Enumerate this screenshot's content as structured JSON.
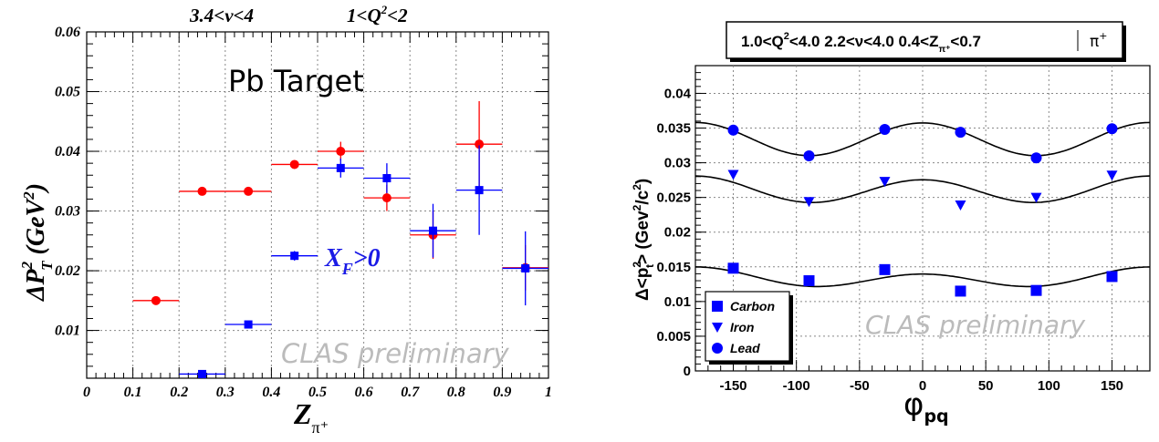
{
  "chart_data": [
    {
      "type": "scatter",
      "title_left": "3.4<ν<4",
      "title_right_main": "1<Q",
      "title_right_sup": "2",
      "title_right_tail": "<2",
      "annotation": "Pb Target",
      "annotation_xf_main": "X",
      "annotation_xf_sub": "F",
      "annotation_xf_tail": ">0",
      "watermark": "CLAS preliminary",
      "xlabel_main": "Z",
      "xlabel_sub": "π⁺",
      "ylabel_main": "ΔP",
      "ylabel_sup": "2",
      "ylabel_sub": "T",
      "ylabel_tail": " (GeV",
      "ylabel_tail_sup": "2",
      "ylabel_close": ")",
      "xlim": [
        0,
        1
      ],
      "ylim": [
        0.002,
        0.06
      ],
      "xticks": [
        0,
        0.1,
        0.2,
        0.3,
        0.4,
        0.5,
        0.6,
        0.7,
        0.8,
        0.9,
        1
      ],
      "xtick_labels": [
        "0",
        "0.1",
        "0.2",
        "0.3",
        "0.4",
        "0.5",
        "0.6",
        "0.7",
        "0.8",
        "0.9",
        "1"
      ],
      "yticks": [
        0.01,
        0.02,
        0.03,
        0.04,
        0.05,
        0.06
      ],
      "ytick_labels": [
        "0.01",
        "0.02",
        "0.03",
        "0.04",
        "0.05",
        "0.06"
      ],
      "grid": true,
      "series": [
        {
          "color": "#ff0000",
          "marker": "circle",
          "points": [
            {
              "x": 0.15,
              "y": 0.015,
              "xerr": 0.05,
              "yerr": 0.0004
            },
            {
              "x": 0.25,
              "y": 0.0333,
              "xerr": 0.05,
              "yerr": 0.0004
            },
            {
              "x": 0.35,
              "y": 0.0333,
              "xerr": 0.05,
              "yerr": 0.0004
            },
            {
              "x": 0.45,
              "y": 0.0378,
              "xerr": 0.05,
              "yerr": 0.0006
            },
            {
              "x": 0.55,
              "y": 0.04,
              "xerr": 0.05,
              "yerr": 0.0016
            },
            {
              "x": 0.65,
              "y": 0.0322,
              "xerr": 0.05,
              "yerr": 0.0022
            },
            {
              "x": 0.75,
              "y": 0.026,
              "xerr": 0.05,
              "yerr": 0.004
            },
            {
              "x": 0.85,
              "y": 0.0412,
              "xerr": 0.05,
              "yerr": 0.0072
            },
            {
              "x": 0.95,
              "y": 0.0205,
              "xerr": 0.05,
              "yerr": 0.0038
            }
          ]
        },
        {
          "color": "#0000ff",
          "marker": "square",
          "points": [
            {
              "x": 0.25,
              "y": 0.0027,
              "xerr": 0.05,
              "yerr": 0.0004
            },
            {
              "x": 0.35,
              "y": 0.011,
              "xerr": 0.05,
              "yerr": 0.0004
            },
            {
              "x": 0.45,
              "y": 0.0225,
              "xerr": 0.05,
              "yerr": 0.0008
            },
            {
              "x": 0.55,
              "y": 0.0372,
              "xerr": 0.05,
              "yerr": 0.0016
            },
            {
              "x": 0.65,
              "y": 0.0355,
              "xerr": 0.05,
              "yerr": 0.0025
            },
            {
              "x": 0.75,
              "y": 0.0267,
              "xerr": 0.05,
              "yerr": 0.0045
            },
            {
              "x": 0.85,
              "y": 0.0335,
              "xerr": 0.05,
              "yerr": 0.0075
            },
            {
              "x": 0.95,
              "y": 0.0204,
              "xerr": 0.05,
              "yerr": 0.0062
            }
          ]
        }
      ]
    },
    {
      "type": "scatter",
      "title_parts": [
        "1.0<Q",
        "2",
        "<4.0 2.2<ν<4.0 0.4<Z",
        "π⁺",
        "<0.7",
        "π",
        "+"
      ],
      "watermark": "CLAS preliminary",
      "xlabel_main": "φ",
      "xlabel_sub": "pq",
      "ylabel_main": "Δ<p",
      "ylabel_sup": "2",
      "ylabel_sub": "t",
      "ylabel_tail": "> (Gev",
      "ylabel_tail_sup": "2",
      "ylabel_close": "/c",
      "ylabel_close_sup": "2",
      "ylabel_end": ")",
      "xlim": [
        -180,
        180
      ],
      "ylim": [
        0,
        0.044
      ],
      "xticks": [
        -150,
        -100,
        -50,
        0,
        50,
        100,
        150
      ],
      "xtick_labels": [
        "-150",
        "-100",
        "-50",
        "0",
        "50",
        "100",
        "150"
      ],
      "yticks": [
        0,
        0.005,
        0.01,
        0.015,
        0.02,
        0.025,
        0.03,
        0.035,
        0.04
      ],
      "ytick_labels": [
        "0",
        "0.005",
        "0.01",
        "0.015",
        "0.02",
        "0.025",
        "0.03",
        "0.035",
        "0.04"
      ],
      "grid": true,
      "legend_placement": "bottom-left",
      "series": [
        {
          "name": "Carbon",
          "color": "#0000ff",
          "marker": "square",
          "points": [
            {
              "x": -150,
              "y": 0.0148
            },
            {
              "x": -90,
              "y": 0.013
            },
            {
              "x": -30,
              "y": 0.0146
            },
            {
              "x": 30,
              "y": 0.0115
            },
            {
              "x": 90,
              "y": 0.0116
            },
            {
              "x": 150,
              "y": 0.0136
            }
          ],
          "fit": {
            "a": 0.01333,
            "b": -0.00051,
            "c": 0.00114
          }
        },
        {
          "name": "Iron",
          "color": "#0000ff",
          "marker": "triangle-down",
          "points": [
            {
              "x": -150,
              "y": 0.0283
            },
            {
              "x": -90,
              "y": 0.0244
            },
            {
              "x": -30,
              "y": 0.0273
            },
            {
              "x": 30,
              "y": 0.0239
            },
            {
              "x": 90,
              "y": 0.025
            },
            {
              "x": 150,
              "y": 0.0282
            }
          ],
          "fit": {
            "a": 0.02605,
            "b": -0.00027,
            "c": 0.00177
          }
        },
        {
          "name": "Lead",
          "color": "#0000ff",
          "marker": "circle",
          "points": [
            {
              "x": -150,
              "y": 0.0347
            },
            {
              "x": -90,
              "y": 0.031
            },
            {
              "x": -30,
              "y": 0.0348
            },
            {
              "x": 30,
              "y": 0.0344
            },
            {
              "x": 90,
              "y": 0.0307
            },
            {
              "x": 150,
              "y": 0.0349
            }
          ],
          "fit": {
            "a": 0.0334,
            "b": -3e-05,
            "c": 0.00237
          }
        }
      ]
    }
  ]
}
